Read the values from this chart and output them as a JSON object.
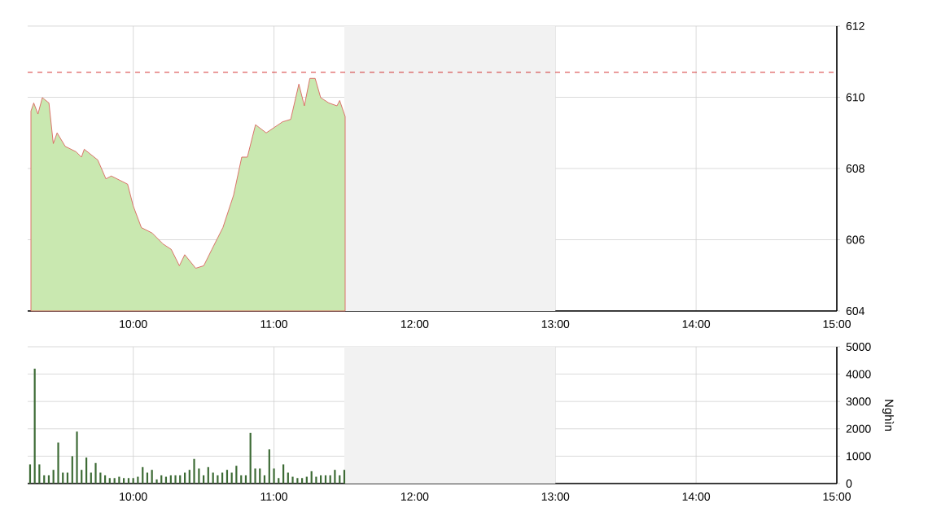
{
  "chart_data": [
    {
      "type": "area",
      "color": "#d9534f",
      "x": [
        9.273,
        9.293,
        9.323,
        9.354,
        9.401,
        9.432,
        9.459,
        9.517,
        9.594,
        9.632,
        9.652,
        9.748,
        9.806,
        9.844,
        9.96,
        10.0,
        10.058,
        10.134,
        10.212,
        10.27,
        10.328,
        10.366,
        10.444,
        10.501,
        10.559,
        10.637,
        10.713,
        10.771,
        10.811,
        10.869,
        10.945,
        11.061,
        11.119,
        11.177,
        11.216,
        11.255,
        11.293,
        11.332,
        11.39,
        11.448,
        11.467,
        11.506
      ],
      "values": [
        609.61,
        609.84,
        609.53,
        609.99,
        609.84,
        608.7,
        609.0,
        608.62,
        608.47,
        608.32,
        608.54,
        608.24,
        607.71,
        607.79,
        607.56,
        606.95,
        606.34,
        606.19,
        605.88,
        605.73,
        605.27,
        605.58,
        605.2,
        605.27,
        605.73,
        606.34,
        607.25,
        608.32,
        608.32,
        609.23,
        609.0,
        609.31,
        609.38,
        610.37,
        609.76,
        610.53,
        610.53,
        609.99,
        609.84,
        609.76,
        609.91,
        609.46
      ],
      "xlim": [
        9.25,
        15
      ],
      "ylim": [
        604,
        612
      ],
      "xticks": [
        {
          "value": 10,
          "label": "10:00"
        },
        {
          "value": 11,
          "label": "11:00"
        },
        {
          "value": 12,
          "label": "12:00"
        },
        {
          "value": 13,
          "label": "13:00"
        },
        {
          "value": 14,
          "label": "14:00"
        },
        {
          "value": 15,
          "label": "15:00"
        }
      ],
      "yticks": [
        604,
        606,
        608,
        610,
        612
      ],
      "grid": true,
      "ref_lines": [
        {
          "axis": "y",
          "value": 610.7,
          "color": "#cc0000",
          "line_style": "dashed"
        }
      ],
      "bands": [
        {
          "axis": "x",
          "from": 11.5,
          "to": 13,
          "color": "#f2f2f2"
        }
      ]
    },
    {
      "type": "bar",
      "color": "#3d6b35",
      "ylabel": "Nghìn",
      "x": [
        9.267,
        9.3,
        9.333,
        9.367,
        9.4,
        9.433,
        9.467,
        9.5,
        9.533,
        9.567,
        9.6,
        9.633,
        9.667,
        9.7,
        9.733,
        9.767,
        9.8,
        9.833,
        9.867,
        9.9,
        9.933,
        9.967,
        10,
        10.033,
        10.067,
        10.1,
        10.133,
        10.167,
        10.2,
        10.233,
        10.267,
        10.3,
        10.333,
        10.367,
        10.4,
        10.433,
        10.467,
        10.5,
        10.533,
        10.567,
        10.6,
        10.633,
        10.667,
        10.7,
        10.733,
        10.767,
        10.8,
        10.833,
        10.867,
        10.9,
        10.933,
        10.967,
        11,
        11.033,
        11.067,
        11.1,
        11.133,
        11.167,
        11.2,
        11.233,
        11.267,
        11.3,
        11.333,
        11.367,
        11.4,
        11.433,
        11.467,
        11.5
      ],
      "values": [
        700,
        4200,
        700,
        300,
        300,
        500,
        1500,
        400,
        400,
        1000,
        1900,
        500,
        950,
        400,
        750,
        400,
        300,
        200,
        200,
        250,
        200,
        200,
        200,
        250,
        600,
        400,
        500,
        150,
        300,
        250,
        300,
        300,
        300,
        400,
        500,
        900,
        550,
        300,
        600,
        400,
        300,
        400,
        500,
        400,
        650,
        300,
        300,
        1850,
        550,
        550,
        300,
        1250,
        550,
        200,
        700,
        400,
        250,
        200,
        200,
        250,
        450,
        250,
        300,
        300,
        300,
        500,
        300,
        500
      ],
      "xlim": [
        9.25,
        15
      ],
      "ylim": [
        0,
        5000
      ],
      "xticks": [
        {
          "value": 10,
          "label": "10:00"
        },
        {
          "value": 11,
          "label": "11:00"
        },
        {
          "value": 12,
          "label": "12:00"
        },
        {
          "value": 13,
          "label": "13:00"
        },
        {
          "value": 14,
          "label": "14:00"
        },
        {
          "value": 15,
          "label": "15:00"
        }
      ],
      "yticks": [
        0,
        1000,
        2000,
        3000,
        4000,
        5000
      ],
      "grid": true,
      "bands": [
        {
          "axis": "x",
          "from": 11.5,
          "to": 13,
          "color": "#f2f2f2"
        }
      ]
    }
  ]
}
